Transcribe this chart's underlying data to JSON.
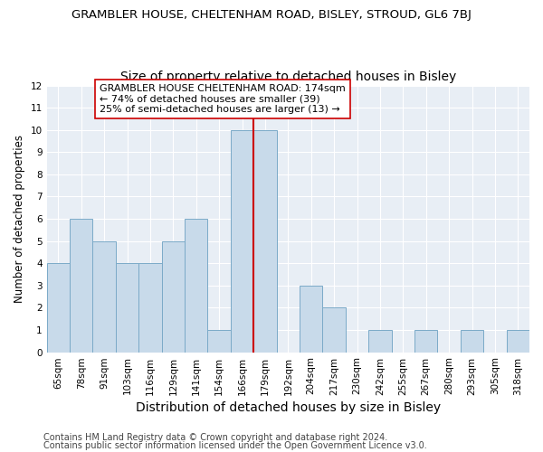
{
  "title": "GRAMBLER HOUSE, CHELTENHAM ROAD, BISLEY, STROUD, GL6 7BJ",
  "subtitle": "Size of property relative to detached houses in Bisley",
  "xlabel": "Distribution of detached houses by size in Bisley",
  "ylabel": "Number of detached properties",
  "categories": [
    "65sqm",
    "78sqm",
    "91sqm",
    "103sqm",
    "116sqm",
    "129sqm",
    "141sqm",
    "154sqm",
    "166sqm",
    "179sqm",
    "192sqm",
    "204sqm",
    "217sqm",
    "230sqm",
    "242sqm",
    "255sqm",
    "267sqm",
    "280sqm",
    "293sqm",
    "305sqm",
    "318sqm"
  ],
  "values": [
    4,
    6,
    5,
    4,
    4,
    5,
    6,
    1,
    10,
    10,
    0,
    3,
    2,
    0,
    1,
    0,
    1,
    0,
    1,
    0,
    1
  ],
  "bar_color": "#c8daea",
  "bar_edge_color": "#7baac8",
  "vline_x": 8.5,
  "vline_color": "#cc0000",
  "annotation_text": "GRAMBLER HOUSE CHELTENHAM ROAD: 174sqm\n← 74% of detached houses are smaller (39)\n25% of semi-detached houses are larger (13) →",
  "annotation_box_color": "#ffffff",
  "annotation_box_edge": "#cc0000",
  "ylim": [
    0,
    12
  ],
  "yticks": [
    0,
    1,
    2,
    3,
    4,
    5,
    6,
    7,
    8,
    9,
    10,
    11,
    12
  ],
  "background_color": "#e8eef5",
  "footer1": "Contains HM Land Registry data © Crown copyright and database right 2024.",
  "footer2": "Contains public sector information licensed under the Open Government Licence v3.0.",
  "title_fontsize": 9.5,
  "subtitle_fontsize": 10,
  "xlabel_fontsize": 10,
  "ylabel_fontsize": 8.5,
  "tick_fontsize": 7.5,
  "annotation_fontsize": 8,
  "footer_fontsize": 7
}
